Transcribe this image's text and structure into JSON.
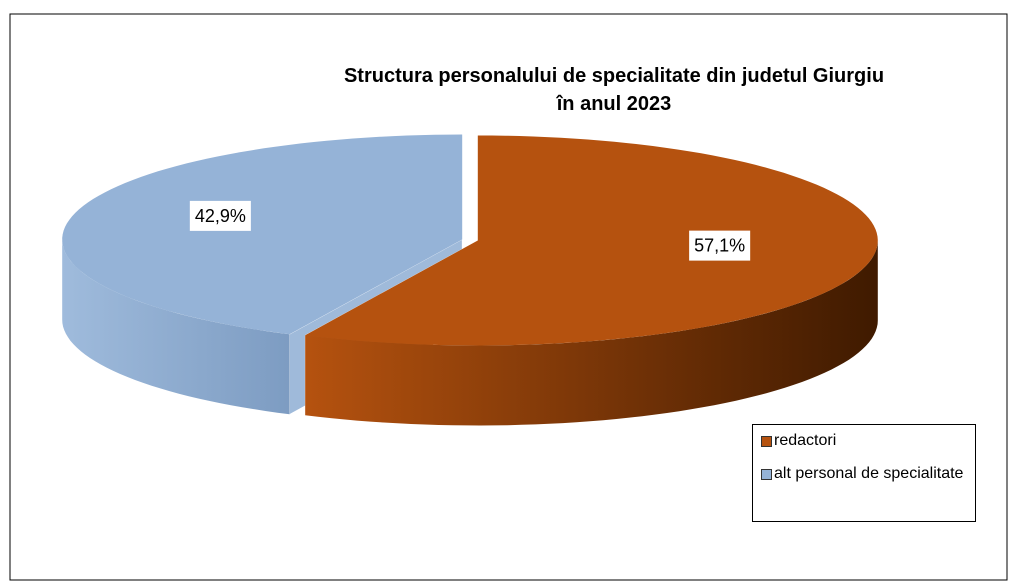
{
  "chart_data": {
    "type": "pie",
    "title": [
      "Structura personalului de specialitate din judetul Giurgiu",
      "în anul 2023"
    ],
    "categories": [
      "redactori",
      "alt personal de specialitate"
    ],
    "values": [
      57.1,
      42.9
    ],
    "value_labels": [
      "57,1%",
      "42,9%"
    ],
    "colors": [
      "#b5520f",
      "#95b3d7"
    ],
    "legend": "bottom-right"
  }
}
